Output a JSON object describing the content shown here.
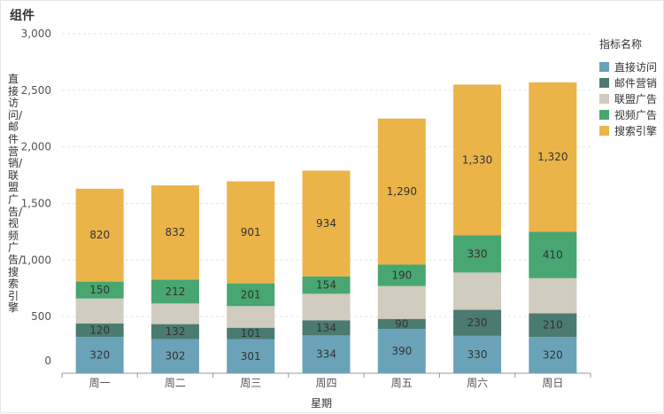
{
  "widget": {
    "title": "组件"
  },
  "legend": {
    "title": "指标名称",
    "items": [
      {
        "label": "直接访问",
        "color": "#6aa3b8"
      },
      {
        "label": "邮件营销",
        "color": "#4b7a70"
      },
      {
        "label": "联盟广告",
        "color": "#d0ccbf"
      },
      {
        "label": "视频广告",
        "color": "#48a670"
      },
      {
        "label": "搜索引擎",
        "color": "#eab449"
      }
    ]
  },
  "chart_data": {
    "type": "bar",
    "stacked": true,
    "title": "",
    "xlabel": "星期",
    "ylabel": "直接访问/邮件营销/联盟广告/视频广告/搜索引擎",
    "categories": [
      "周一",
      "周二",
      "周三",
      "周四",
      "周五",
      "周六",
      "周日"
    ],
    "ylim": [
      0,
      3000
    ],
    "yticks": [
      "0",
      "500",
      "1,000",
      "1,500",
      "2,000",
      "2,500",
      "3,000"
    ],
    "grid": true,
    "legend_position": "top-right",
    "series": [
      {
        "name": "直接访问",
        "color": "#6aa3b8",
        "values": [
          320,
          302,
          301,
          334,
          390,
          330,
          320
        ]
      },
      {
        "name": "邮件营销",
        "color": "#4b7a70",
        "values": [
          120,
          132,
          101,
          134,
          90,
          230,
          210
        ]
      },
      {
        "name": "联盟广告",
        "color": "#d0ccbf",
        "values": [
          220,
          182,
          191,
          234,
          290,
          330,
          310
        ]
      },
      {
        "name": "视频广告",
        "color": "#48a670",
        "values": [
          150,
          212,
          201,
          154,
          190,
          330,
          410
        ]
      },
      {
        "name": "搜索引擎",
        "color": "#eab449",
        "values": [
          820,
          832,
          901,
          934,
          1290,
          1330,
          1320
        ]
      }
    ],
    "data_labels": {
      "直接访问": [
        "320",
        "302",
        "301",
        "334",
        "390",
        "330",
        "320"
      ],
      "邮件营销": [
        "120",
        "132",
        "101",
        "134",
        "90",
        "230",
        "210"
      ],
      "联盟广告": [
        "",
        "",
        "",
        "",
        "",
        "",
        ""
      ],
      "视频广告": [
        "150",
        "212",
        "201",
        "154",
        "190",
        "330",
        "410"
      ],
      "搜索引擎": [
        "820",
        "832",
        "901",
        "934",
        "1,290",
        "1,330",
        "1,320"
      ]
    }
  }
}
